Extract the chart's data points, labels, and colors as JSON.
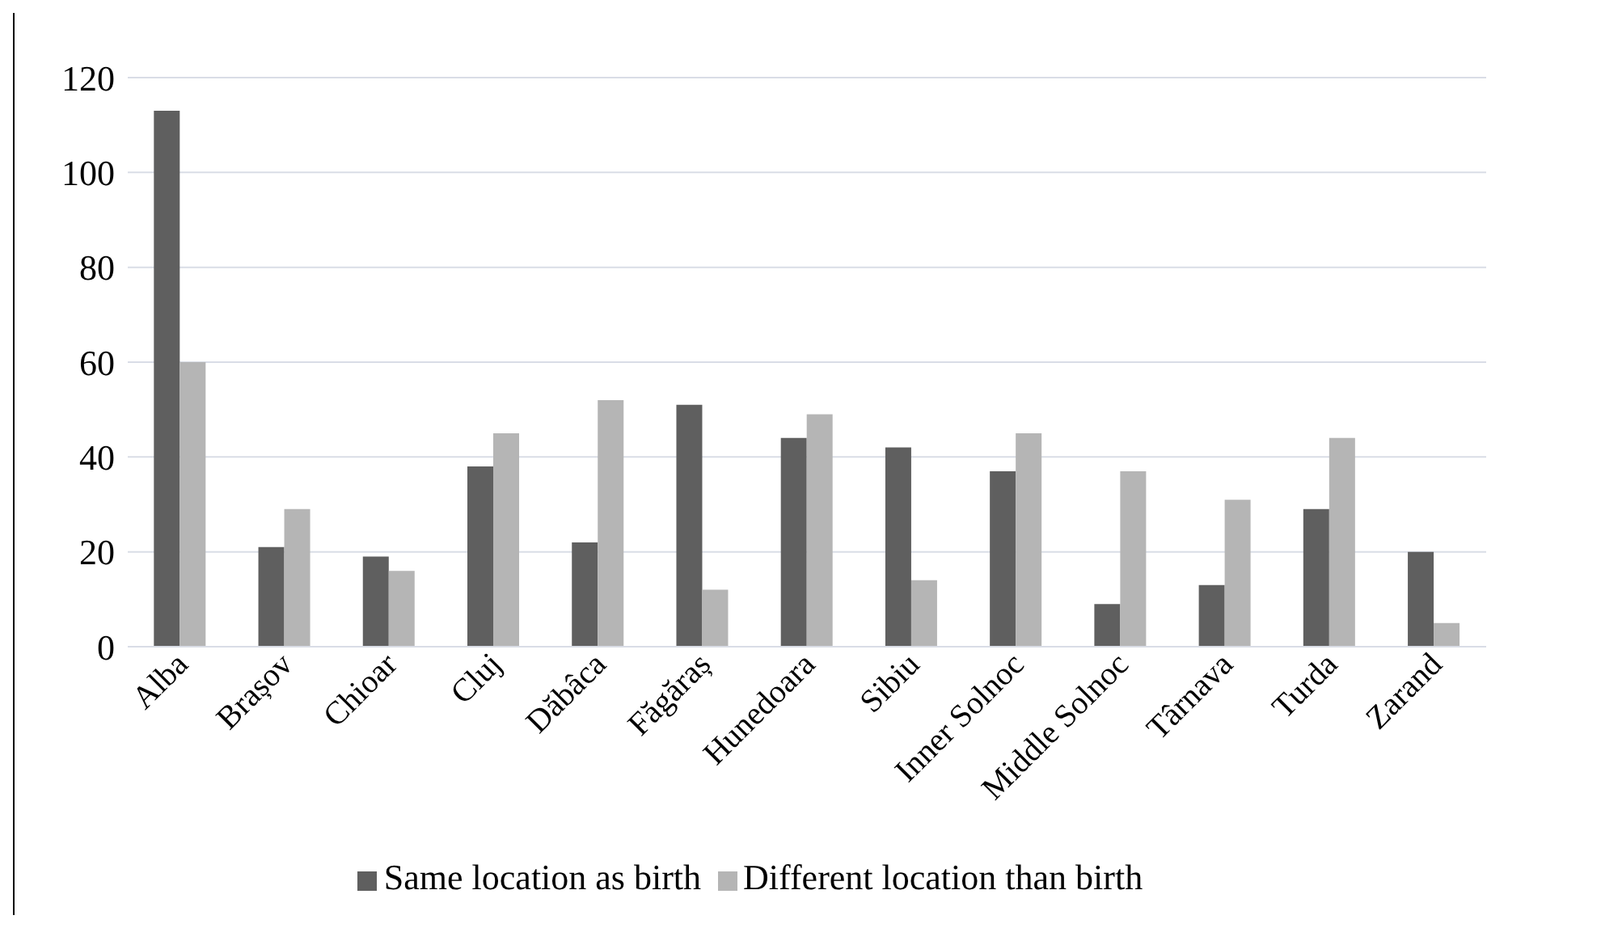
{
  "chart_data": {
    "type": "bar",
    "categories": [
      "Alba",
      "Brașov",
      "Chioar",
      "Cluj",
      "Dăbâca",
      "Făgăraș",
      "Hunedoara",
      "Sibiu",
      "Inner Solnoc",
      "Middle Solnoc",
      "Târnava",
      "Turda",
      "Zarand"
    ],
    "series": [
      {
        "name": "Same location as birth",
        "color": "#5f5f5f",
        "values": [
          113,
          21,
          19,
          38,
          22,
          51,
          44,
          42,
          37,
          9,
          13,
          29,
          20
        ]
      },
      {
        "name": "Different location than birth",
        "color": "#b5b5b5",
        "values": [
          60,
          29,
          16,
          45,
          52,
          12,
          49,
          14,
          45,
          37,
          31,
          44,
          5
        ]
      }
    ],
    "ylim": [
      0,
      120
    ],
    "yticks": [
      0,
      20,
      40,
      60,
      80,
      100,
      120
    ],
    "grid": "y",
    "legend": "bottom"
  }
}
